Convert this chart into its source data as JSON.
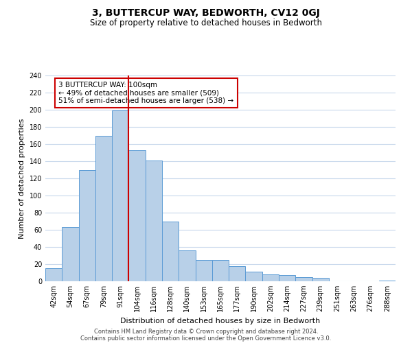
{
  "title": "3, BUTTERCUP WAY, BEDWORTH, CV12 0GJ",
  "subtitle": "Size of property relative to detached houses in Bedworth",
  "xlabel": "Distribution of detached houses by size in Bedworth",
  "ylabel": "Number of detached properties",
  "bar_labels": [
    "42sqm",
    "54sqm",
    "67sqm",
    "79sqm",
    "91sqm",
    "104sqm",
    "116sqm",
    "128sqm",
    "140sqm",
    "153sqm",
    "165sqm",
    "177sqm",
    "190sqm",
    "202sqm",
    "214sqm",
    "227sqm",
    "239sqm",
    "251sqm",
    "263sqm",
    "276sqm",
    "288sqm"
  ],
  "bar_heights": [
    15,
    63,
    130,
    170,
    199,
    153,
    141,
    70,
    36,
    25,
    25,
    18,
    11,
    8,
    7,
    5,
    4,
    0,
    0,
    0,
    1
  ],
  "bar_color": "#b8d0e8",
  "bar_edge_color": "#5b9bd5",
  "red_line_color": "#cc0000",
  "red_line_xindex": 4.5,
  "annotation_text": "3 BUTTERCUP WAY: 100sqm\n← 49% of detached houses are smaller (509)\n51% of semi-detached houses are larger (538) →",
  "annotation_box_color": "#ffffff",
  "annotation_box_edge": "#cc0000",
  "ylim": [
    0,
    240
  ],
  "yticks": [
    0,
    20,
    40,
    60,
    80,
    100,
    120,
    140,
    160,
    180,
    200,
    220,
    240
  ],
  "footer_line1": "Contains HM Land Registry data © Crown copyright and database right 2024.",
  "footer_line2": "Contains public sector information licensed under the Open Government Licence v3.0.",
  "bg_color": "#ffffff",
  "grid_color": "#c8d8ec",
  "title_fontsize": 10,
  "subtitle_fontsize": 8.5,
  "axis_label_fontsize": 8,
  "tick_fontsize": 7,
  "annotation_fontsize": 7.5,
  "footer_fontsize": 6
}
